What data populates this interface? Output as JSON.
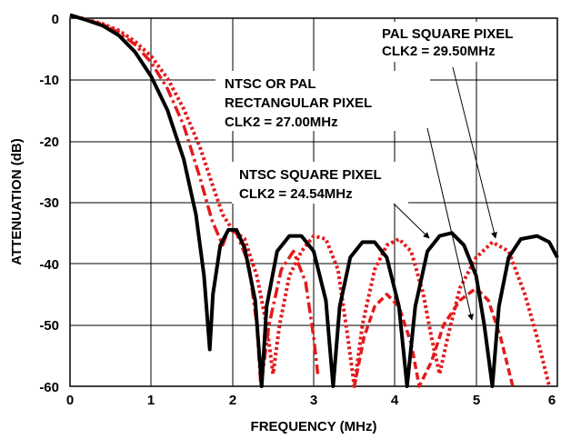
{
  "chart_data": {
    "type": "line",
    "xlabel": "FREQUENCY (MHz)",
    "ylabel": "ATTENUATION (dB)",
    "xlim": [
      0,
      6
    ],
    "ylim": [
      -60,
      2
    ],
    "x_ticks": [
      "0",
      "1",
      "2",
      "3",
      "4",
      "5",
      "6"
    ],
    "y_ticks": [
      "0",
      "-10",
      "-20",
      "-30",
      "-40",
      "-50",
      "-60"
    ],
    "grid": true,
    "series": [
      {
        "color": "#000000",
        "style": "solid",
        "points": [
          [
            0,
            0.5
          ],
          [
            0.2,
            -0.3
          ],
          [
            0.4,
            -1.2
          ],
          [
            0.6,
            -2.8
          ],
          [
            0.8,
            -5.5
          ],
          [
            1.0,
            -9.5
          ],
          [
            1.2,
            -15
          ],
          [
            1.4,
            -23
          ],
          [
            1.55,
            -32
          ],
          [
            1.65,
            -42
          ],
          [
            1.72,
            -54
          ],
          [
            1.76,
            -45
          ],
          [
            1.85,
            -37
          ],
          [
            1.95,
            -34.5
          ],
          [
            2.05,
            -34.5
          ],
          [
            2.15,
            -37.5
          ],
          [
            2.28,
            -46
          ],
          [
            2.36,
            -60
          ],
          [
            2.42,
            -47
          ],
          [
            2.55,
            -38
          ],
          [
            2.7,
            -35.5
          ],
          [
            2.85,
            -35.5
          ],
          [
            3.0,
            -38
          ],
          [
            3.15,
            -46
          ],
          [
            3.24,
            -60
          ],
          [
            3.32,
            -47
          ],
          [
            3.45,
            -39
          ],
          [
            3.6,
            -36.5
          ],
          [
            3.75,
            -36.5
          ],
          [
            3.9,
            -39
          ],
          [
            4.05,
            -47
          ],
          [
            4.15,
            -60
          ],
          [
            4.25,
            -47
          ],
          [
            4.4,
            -38
          ],
          [
            4.55,
            -35.5
          ],
          [
            4.7,
            -35
          ],
          [
            4.85,
            -37
          ],
          [
            5.0,
            -42
          ],
          [
            5.1,
            -50
          ],
          [
            5.2,
            -60
          ],
          [
            5.28,
            -47
          ],
          [
            5.4,
            -39
          ],
          [
            5.55,
            -36
          ],
          [
            5.75,
            -35.5
          ],
          [
            5.9,
            -36.5
          ],
          [
            6.0,
            -39
          ]
        ]
      },
      {
        "color": "#e41a1c",
        "style": "dashdot",
        "points": [
          [
            0,
            0.5
          ],
          [
            0.2,
            -0.3
          ],
          [
            0.4,
            -1.0
          ],
          [
            0.6,
            -2.3
          ],
          [
            0.8,
            -4.3
          ],
          [
            1.0,
            -7.2
          ],
          [
            1.2,
            -11.5
          ],
          [
            1.4,
            -17.5
          ],
          [
            1.6,
            -26
          ],
          [
            1.75,
            -33
          ],
          [
            1.88,
            -37
          ],
          [
            1.95,
            -34.5
          ],
          [
            2.05,
            -35
          ],
          [
            2.2,
            -40
          ],
          [
            2.3,
            -50
          ],
          [
            2.35,
            -60
          ],
          [
            2.45,
            -50
          ],
          [
            2.6,
            -41
          ],
          [
            2.75,
            -38
          ],
          [
            2.9,
            -43
          ],
          [
            3.0,
            -52
          ],
          [
            3.05,
            -58
          ]
        ]
      },
      {
        "color": "#e41a1c",
        "style": "dotted",
        "points": [
          [
            0,
            0.5
          ],
          [
            0.2,
            -0.2
          ],
          [
            0.4,
            -0.9
          ],
          [
            0.6,
            -2.0
          ],
          [
            0.8,
            -3.8
          ],
          [
            1.0,
            -6.2
          ],
          [
            1.2,
            -9.8
          ],
          [
            1.4,
            -14.8
          ],
          [
            1.6,
            -21
          ],
          [
            1.75,
            -27
          ],
          [
            1.88,
            -32
          ],
          [
            2.0,
            -34.5
          ],
          [
            2.15,
            -36
          ],
          [
            2.3,
            -42
          ],
          [
            2.42,
            -50
          ],
          [
            2.5,
            -58
          ],
          [
            2.58,
            -50
          ],
          [
            2.7,
            -42
          ],
          [
            2.85,
            -38
          ],
          [
            3.0,
            -35.5
          ],
          [
            3.15,
            -36
          ],
          [
            3.3,
            -41
          ],
          [
            3.42,
            -52
          ],
          [
            3.5,
            -60
          ],
          [
            3.6,
            -50
          ],
          [
            3.75,
            -41
          ],
          [
            3.9,
            -37
          ],
          [
            4.05,
            -36
          ],
          [
            4.2,
            -38
          ],
          [
            4.35,
            -45
          ],
          [
            4.45,
            -52
          ],
          [
            4.55,
            -58
          ],
          [
            4.65,
            -52
          ],
          [
            4.8,
            -44
          ],
          [
            5.0,
            -39
          ],
          [
            5.2,
            -36.5
          ],
          [
            5.4,
            -38
          ],
          [
            5.6,
            -45
          ],
          [
            5.75,
            -52
          ],
          [
            5.9,
            -60
          ]
        ]
      },
      {
        "color": "#e41a1c",
        "style": "dashed",
        "points": [
          [
            3.5,
            -60
          ],
          [
            3.62,
            -52
          ],
          [
            3.75,
            -47
          ],
          [
            3.9,
            -45
          ],
          [
            4.05,
            -47
          ],
          [
            4.2,
            -53
          ],
          [
            4.3,
            -60
          ],
          [
            4.45,
            -56
          ],
          [
            4.6,
            -50
          ],
          [
            4.8,
            -46
          ],
          [
            5.0,
            -44
          ],
          [
            5.15,
            -46
          ],
          [
            5.3,
            -52
          ],
          [
            5.45,
            -60
          ]
        ]
      }
    ],
    "annotations": [
      {
        "lines": [
          "PAL SQUARE PIXEL",
          "CLK2 = 29.50MHz"
        ]
      },
      {
        "lines": [
          "NTSC OR PAL",
          "RECTANGULAR PIXEL",
          "CLK2 = 27.00MHz"
        ]
      },
      {
        "lines": [
          "NTSC SQUARE PIXEL",
          "CLK2 = 24.54MHz"
        ]
      }
    ]
  }
}
